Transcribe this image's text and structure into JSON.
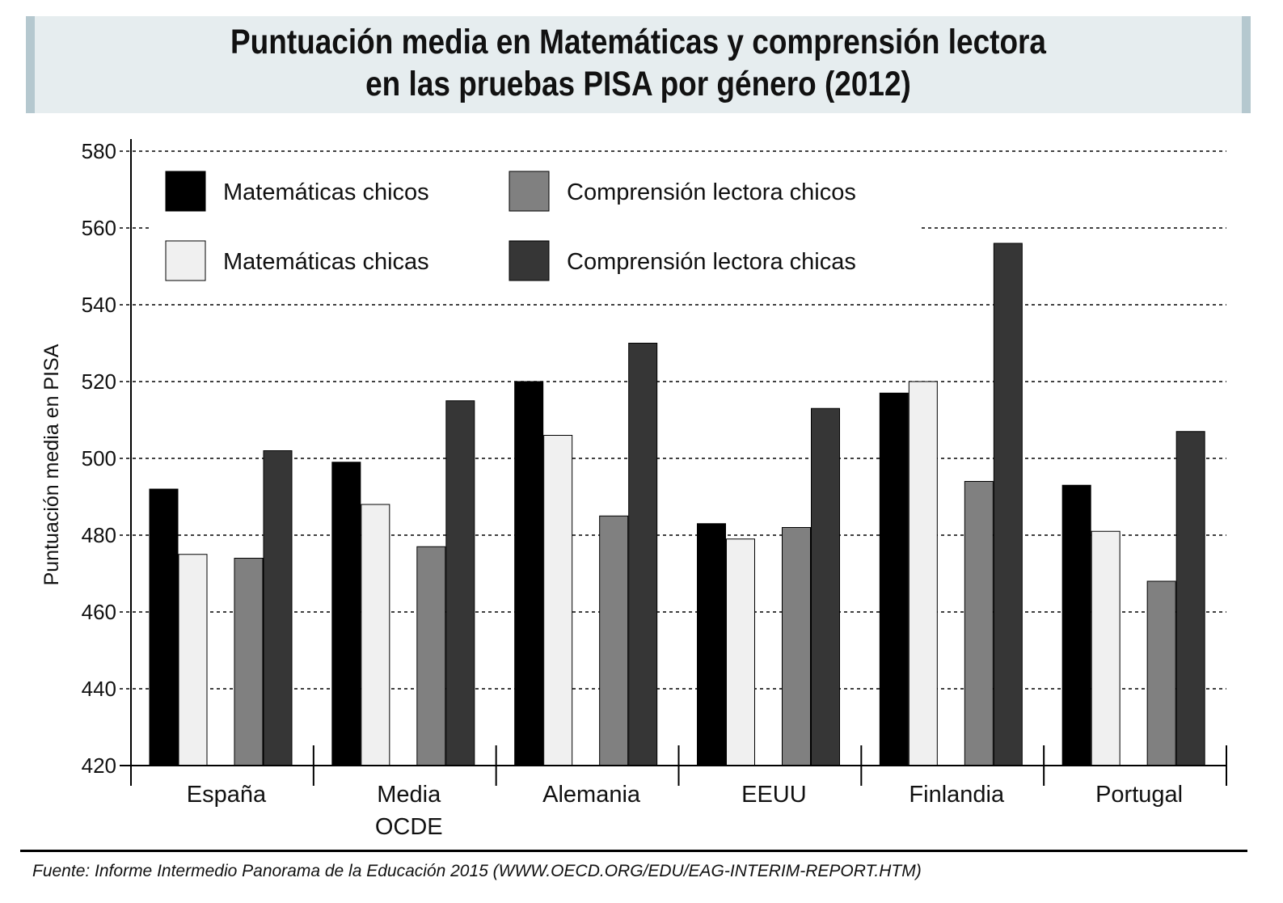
{
  "chart_data": {
    "type": "bar",
    "title_lines": [
      "Puntuación media en Matemáticas y comprensión lectora",
      "en las pruebas PISA por género (2012)"
    ],
    "ylabel": "Puntuación media en PISA",
    "xlabel": "",
    "ylim": [
      420,
      580
    ],
    "yticks": [
      420,
      440,
      460,
      480,
      500,
      520,
      540,
      560,
      580
    ],
    "grid": true,
    "legend_position": "top-left",
    "categories": [
      "España",
      "Media OCDE",
      "Alemania",
      "EEUU",
      "Finlandia",
      "Portugal"
    ],
    "series": [
      {
        "name": "Matemáticas chicos",
        "color": "#000000",
        "values": [
          492,
          499,
          520,
          483,
          517,
          493
        ]
      },
      {
        "name": "Matemáticas chicas",
        "color": "#f0f0f0",
        "values": [
          475,
          488,
          506,
          479,
          520,
          481
        ]
      },
      {
        "name": "Comprensión lectora chicos",
        "color": "#808080",
        "values": [
          474,
          477,
          485,
          482,
          494,
          468
        ]
      },
      {
        "name": "Comprensión lectora chicas",
        "color": "#363636",
        "values": [
          502,
          515,
          530,
          513,
          556,
          507
        ]
      }
    ],
    "source": "Fuente: Informe Intermedio Panorama de la Educación 2015 (WWW.OECD.ORG/EDU/EAG-INTERIM-REPORT.HTM)"
  }
}
